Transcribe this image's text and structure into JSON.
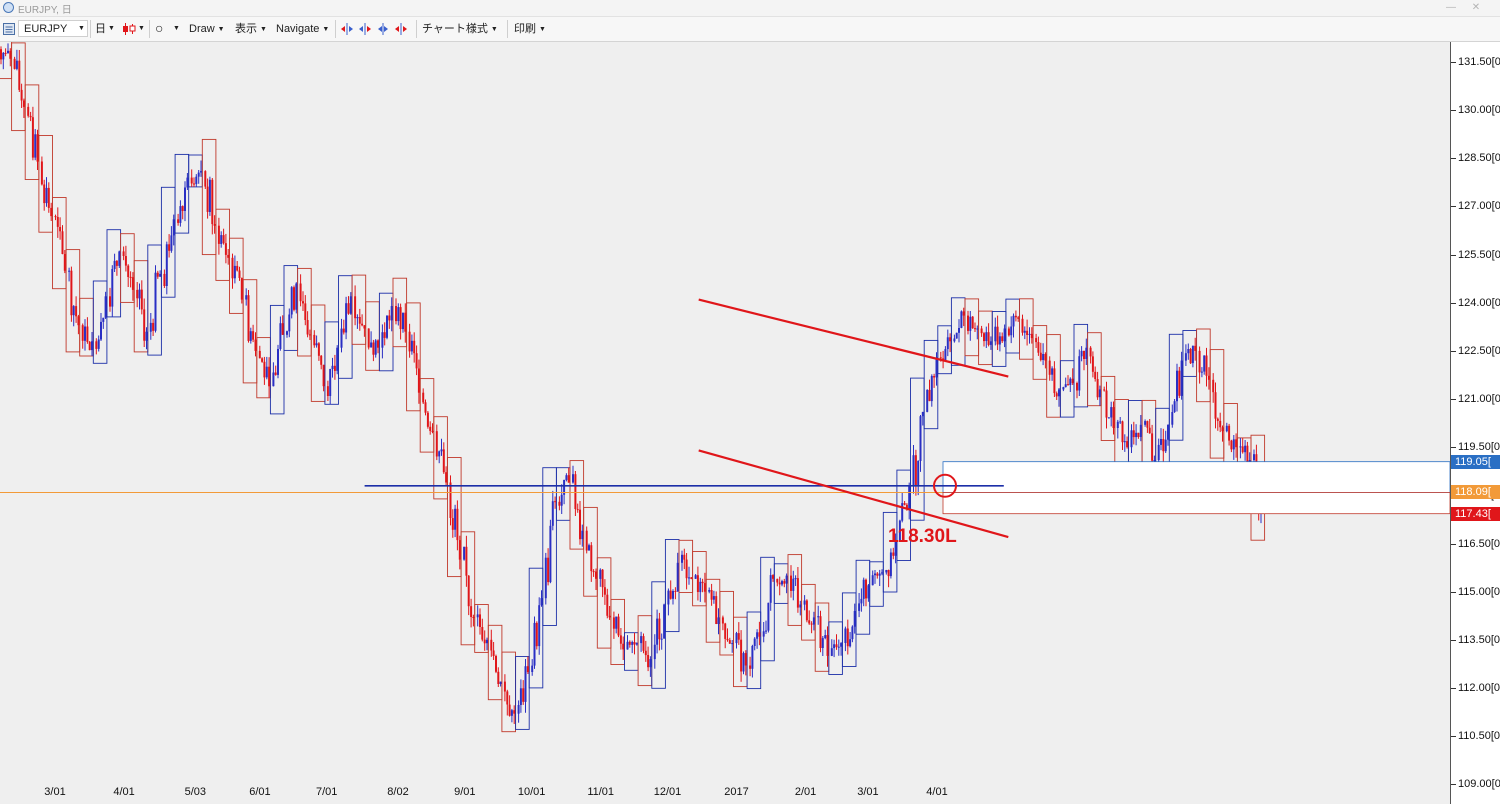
{
  "window": {
    "title": "EURJPY, 日",
    "min_glyph": "—",
    "close_glyph": "✕"
  },
  "toolbar": {
    "symbol": "EURJPY",
    "timeframe": "日",
    "draw_label": "Draw",
    "display_label": "表示",
    "navigate_label": "Navigate",
    "chart_style_label": "チャート様式",
    "print_label": "印刷"
  },
  "annotation": {
    "label": "118.30L"
  },
  "colors": {
    "background": "#efefef",
    "bull": "#2a2fc4",
    "bear": "#e0161a",
    "weekly_up_box": "#1c2fa8",
    "weekly_down_box": "#c0392b",
    "trendline": "#e0161a",
    "support_line": "#1c2fa8",
    "current_price_line": "#f29a38"
  },
  "chart_data": {
    "type": "candlestick",
    "symbol": "EURJPY",
    "timeframe": "日",
    "ylim": [
      109.0,
      131.9
    ],
    "yticks": [
      "131.50[0",
      "130.00[0",
      "128.50[0",
      "127.00[0",
      "125.50[0",
      "124.00[0",
      "122.50[0",
      "121.00[0",
      "119.50[0",
      "118.00[0",
      "116.50[0",
      "115.00[0",
      "113.50[0",
      "112.00[0",
      "110.50[0",
      "109.00[0"
    ],
    "ytick_values": [
      131.5,
      130.0,
      128.5,
      127.0,
      125.5,
      124.0,
      122.5,
      121.0,
      119.5,
      118.0,
      116.5,
      115.0,
      113.5,
      112.0,
      110.5,
      109.0
    ],
    "xlabels": [
      {
        "label": "3/01",
        "date": "2016-03-01"
      },
      {
        "label": "4/01",
        "date": "2016-04-01"
      },
      {
        "label": "5/03",
        "date": "2016-05-03"
      },
      {
        "label": "6/01",
        "date": "2016-06-01"
      },
      {
        "label": "7/01",
        "date": "2016-07-01"
      },
      {
        "label": "8/02",
        "date": "2016-08-02"
      },
      {
        "label": "9/01",
        "date": "2016-09-01"
      },
      {
        "label": "10/01",
        "date": "2016-10-01"
      },
      {
        "label": "11/01",
        "date": "2016-11-01"
      },
      {
        "label": "12/01",
        "date": "2016-12-01"
      },
      {
        "label": "2017",
        "date": "2017-01-01"
      },
      {
        "label": "2/01",
        "date": "2017-02-01"
      },
      {
        "label": "3/01",
        "date": "2017-03-01"
      },
      {
        "label": "4/01",
        "date": "2017-04-01"
      }
    ],
    "price_flags": [
      {
        "label": "119.05[",
        "value": 119.05,
        "color": "#2a6fc4"
      },
      {
        "label": "118.09[",
        "value": 118.09,
        "color": "#f29a38"
      },
      {
        "label": "117.43[",
        "value": 117.43,
        "color": "#e0161a"
      }
    ],
    "weekly_closes": [
      131.6,
      130.1,
      128.4,
      126.7,
      125.0,
      123.3,
      122.8,
      124.2,
      125.6,
      124.4,
      123.1,
      124.9,
      126.6,
      127.9,
      128.1,
      126.4,
      125.4,
      124.1,
      122.5,
      121.4,
      123.0,
      124.6,
      123.0,
      121.4,
      122.6,
      124.2,
      123.2,
      122.6,
      123.9,
      123.1,
      121.2,
      120.0,
      118.4,
      116.0,
      114.2,
      113.5,
      112.2,
      111.2,
      112.5,
      114.8,
      117.8,
      118.4,
      116.9,
      115.4,
      114.2,
      113.2,
      113.4,
      112.9,
      114.6,
      115.9,
      115.4,
      115.0,
      114.2,
      113.4,
      112.7,
      113.6,
      115.4,
      115.5,
      114.6,
      114.2,
      113.0,
      113.4,
      114.4,
      115.2,
      115.6,
      116.6,
      118.3,
      120.6,
      122.3,
      122.8,
      123.6,
      123.2,
      122.8,
      123.2,
      123.5,
      122.9,
      122.2,
      121.3,
      121.5,
      122.6,
      121.3,
      120.1,
      119.5,
      120.2,
      119.1,
      120.2,
      122.2,
      122.5,
      121.6,
      120.0,
      119.5,
      119.1,
      117.6
    ],
    "trendlines": [
      {
        "name": "upper-channel",
        "from": {
          "date": "2016-12-15",
          "value": 124.1
        },
        "to": {
          "date": "2017-05-03",
          "value": 121.7
        }
      },
      {
        "name": "lower-channel",
        "from": {
          "date": "2016-12-15",
          "value": 119.4
        },
        "to": {
          "date": "2017-05-03",
          "value": 116.7
        }
      }
    ],
    "horizontal_line": {
      "value": 118.3,
      "from_date": "2016-07-18",
      "to_date": "2017-05-01"
    },
    "marker_value": 118.3
  }
}
